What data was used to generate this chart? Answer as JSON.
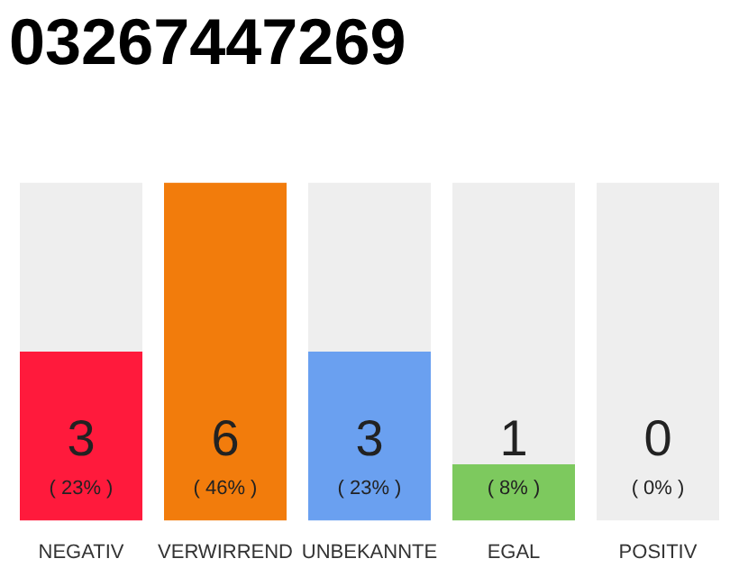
{
  "chart_data": {
    "type": "bar",
    "title": "03267447269",
    "stacked": true,
    "categories": [
      "NEGATIV",
      "VERWIRREND",
      "UNBEKANNTE",
      "EGAL",
      "POSITIV"
    ],
    "series": [
      {
        "colors": [
          "#ff1a3c",
          "#f27c0c",
          "#6aa0f0",
          "#7dc95e",
          "#cccccc"
        ],
        "values": [
          3,
          6,
          3,
          1,
          0
        ],
        "value_labels": [
          "3",
          "6",
          "3",
          "1",
          null
        ]
      },
      {
        "color": "#eeeeee",
        "values": [
          3,
          0,
          3,
          5,
          6
        ]
      }
    ],
    "annotations": [
      "( 23% )",
      "( 46% )",
      "( 23% )",
      "( 8% )",
      "( 0% )",
      {
        "text": "0",
        "x": "POSITIV",
        "y": 0
      }
    ],
    "tick_labels": "x",
    "grid": false,
    "legend": false
  }
}
